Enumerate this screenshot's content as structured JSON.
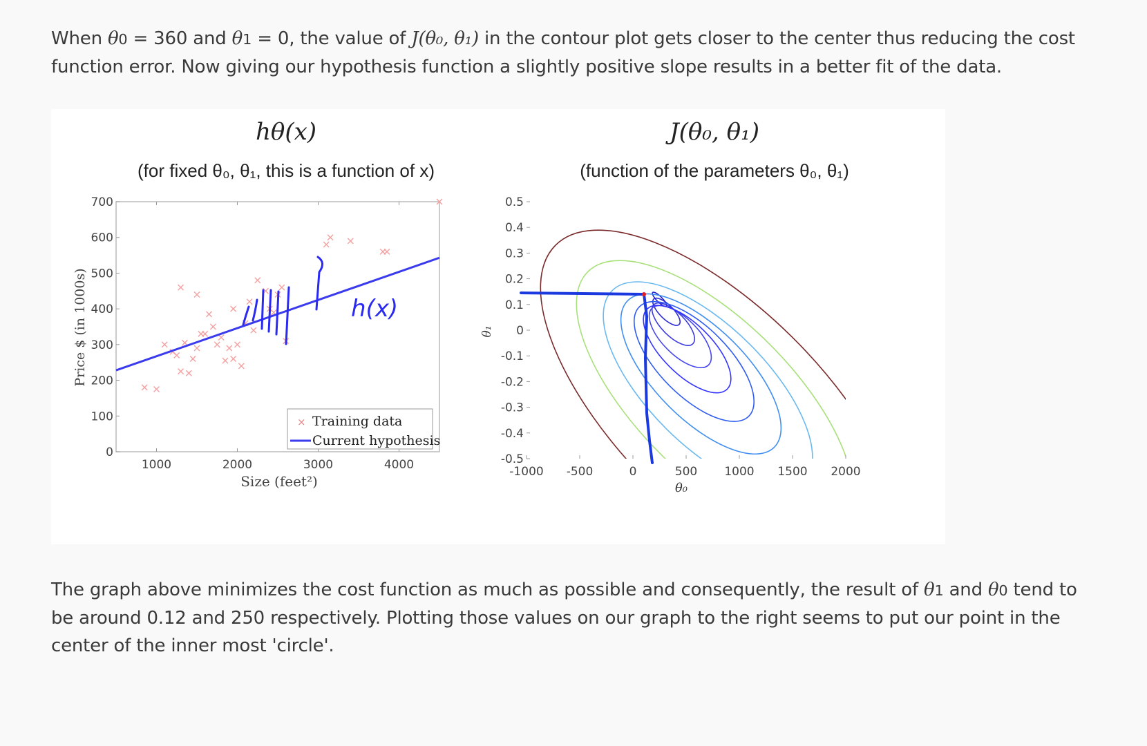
{
  "paragraph_1": {
    "when": "When ",
    "theta0": "θ",
    "sub0": "0",
    "eq360": " = 360 and ",
    "theta1": "θ",
    "sub1": "1",
    "eq0": " = 0, the value of ",
    "J": "J(θ₀, θ₁)",
    "rest": " in the contour plot gets closer to the center thus reducing the cost function error. Now giving our hypothesis function a slightly positive slope results in a better fit of the data."
  },
  "paragraph_2": {
    "start": "The graph above minimizes the cost function as much as possible and consequently, the result of ",
    "theta1": "θ",
    "sub1": "1",
    "and": " and ",
    "theta0": "θ",
    "sub0": "0",
    "rest": " tend to be around 0.12 and 250 respectively. Plotting those values on our graph to the right seems to put our point in the center of the inner most 'circle'."
  },
  "chart_data": [
    {
      "type": "scatter",
      "title": "hθ(x)",
      "subtitle": "(for fixed θ₀, θ₁, this is a function of x)",
      "xlabel": "Size (feet²)",
      "ylabel": "Price $ (in 1000s)",
      "xlim": [
        500,
        4500
      ],
      "ylim": [
        0,
        700
      ],
      "xticks": [
        "1000",
        "2000",
        "3000",
        "4000"
      ],
      "yticks": [
        "0",
        "100",
        "200",
        "300",
        "400",
        "500",
        "600",
        "700"
      ],
      "legend": [
        "Training data",
        "Current hypothesis"
      ],
      "legend_position": "bottom-right",
      "annotation": "h(x)",
      "series": [
        {
          "name": "Training data",
          "points": [
            [
              852,
              180
            ],
            [
              1000,
              175
            ],
            [
              1100,
              300
            ],
            [
              1200,
              280
            ],
            [
              1250,
              270
            ],
            [
              1300,
              225
            ],
            [
              1350,
              305
            ],
            [
              1400,
              220
            ],
            [
              1450,
              260
            ],
            [
              1500,
              290
            ],
            [
              1550,
              330
            ],
            [
              1600,
              330
            ],
            [
              1650,
              385
            ],
            [
              1700,
              350
            ],
            [
              1750,
              300
            ],
            [
              1800,
              320
            ],
            [
              1850,
              255
            ],
            [
              1900,
              290
            ],
            [
              1950,
              260
            ],
            [
              1950,
              400
            ],
            [
              2000,
              300
            ],
            [
              2050,
              240
            ],
            [
              2100,
              360
            ],
            [
              2150,
              420
            ],
            [
              2200,
              340
            ],
            [
              2250,
              480
            ],
            [
              2350,
              450
            ],
            [
              2400,
              400
            ],
            [
              2450,
              390
            ],
            [
              2500,
              440
            ],
            [
              2550,
              460
            ],
            [
              1300,
              460
            ],
            [
              1500,
              440
            ],
            [
              2600,
              310
            ],
            [
              3100,
              580
            ],
            [
              3150,
              600
            ],
            [
              3400,
              590
            ],
            [
              3850,
              560
            ],
            [
              3800,
              560
            ],
            [
              4500,
              700
            ]
          ]
        },
        {
          "name": "Current hypothesis",
          "line": [
            [
              500,
              228
            ],
            [
              4500,
              543
            ]
          ]
        }
      ]
    },
    {
      "type": "contour",
      "title": "J(θ₀, θ₁)",
      "subtitle": "(function of the parameters θ₀, θ₁)",
      "xlabel": "θ₀",
      "ylabel": "θ₁",
      "xlim": [
        -1000,
        2000
      ],
      "ylim": [
        -0.5,
        0.5
      ],
      "xticks": [
        "-1000",
        "-500",
        "0",
        "500",
        "1000",
        "1500",
        "2000"
      ],
      "yticks": [
        "-0.5",
        "-0.4",
        "-0.3",
        "-0.2",
        "-0.1",
        "0",
        "0.1",
        "0.2",
        "0.3",
        "0.4",
        "0.5"
      ],
      "center": [
        250,
        0.12
      ],
      "contour_colors": [
        "#1c1cc8",
        "#2a2ad6",
        "#3a3ae0",
        "#4646f0",
        "#3333ff",
        "#2f5cf0",
        "#3f8ef0",
        "#6ab8f0",
        "#a8e07a",
        "#7a2a2a"
      ]
    }
  ]
}
